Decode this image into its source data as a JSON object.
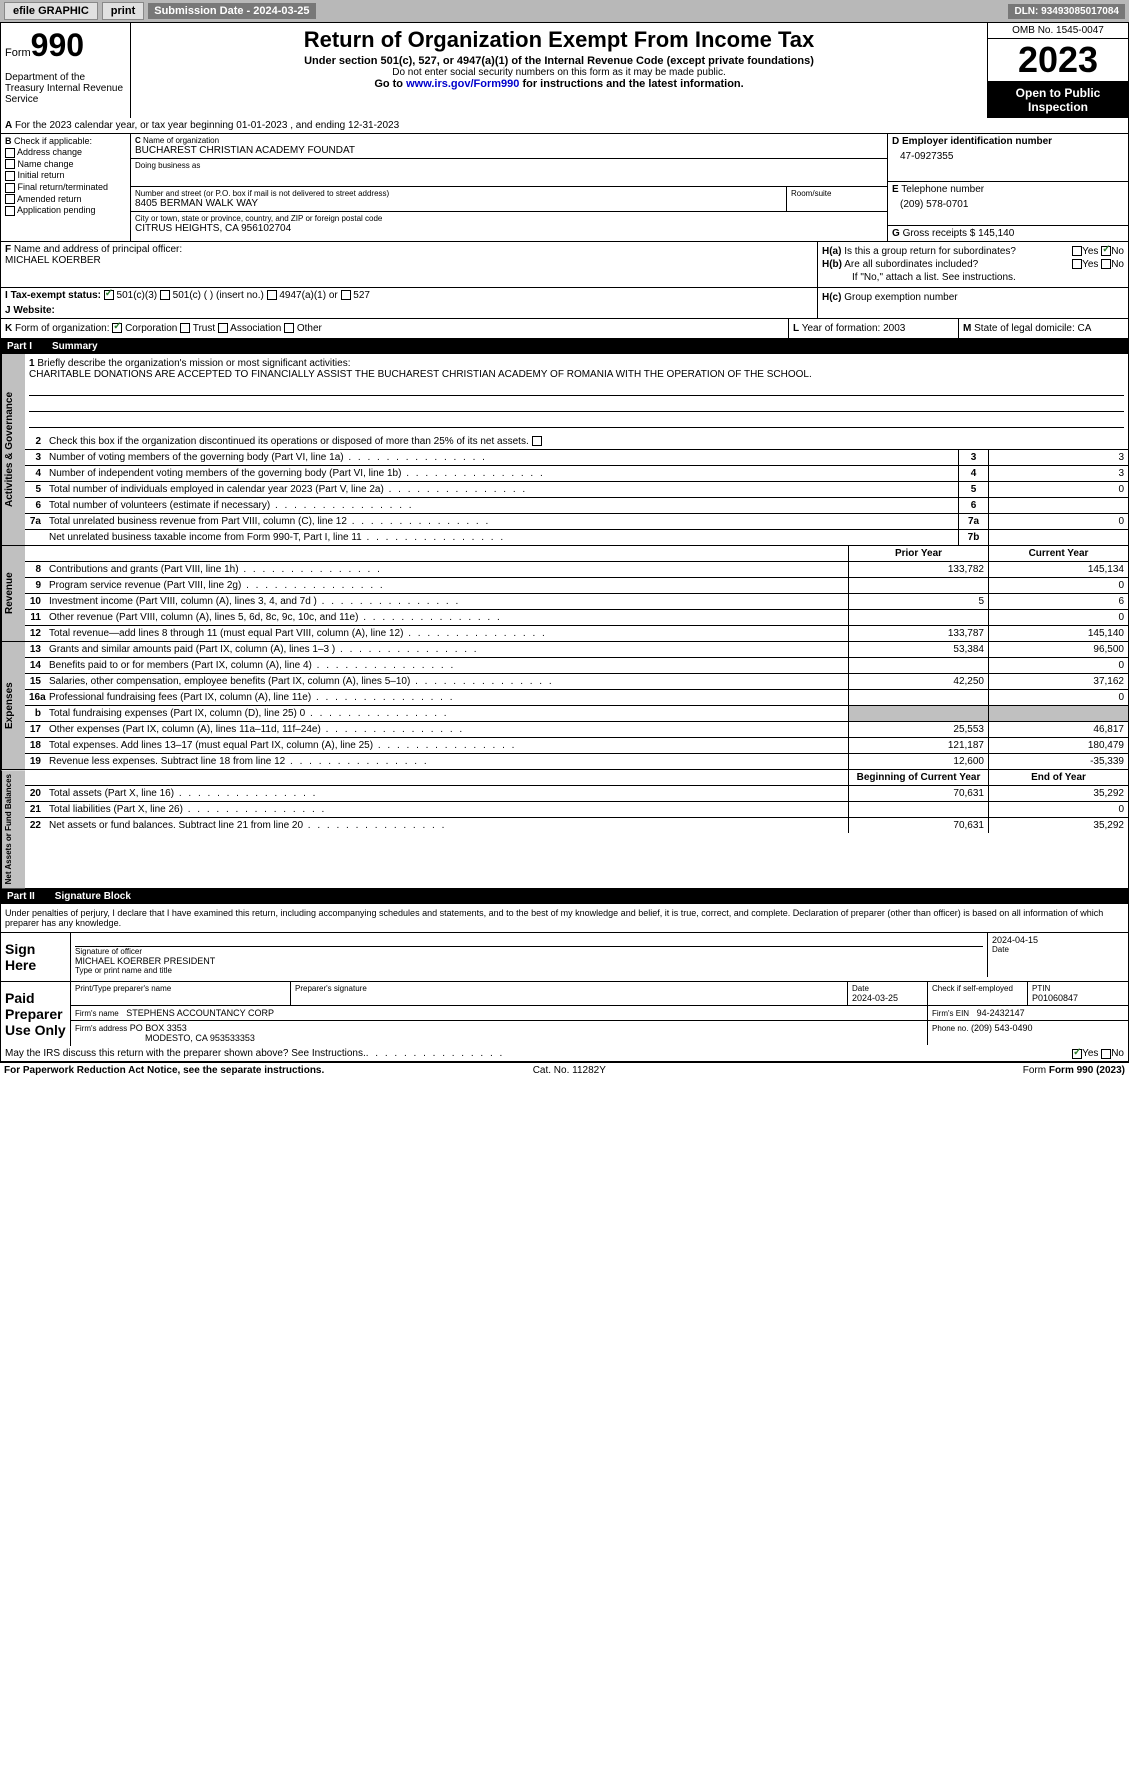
{
  "topbar": {
    "efile": "efile GRAPHIC",
    "print": "print",
    "sub_date_label": "Submission Date - 2024-03-25",
    "dln": "DLN: 93493085017084"
  },
  "header": {
    "form_word": "Form",
    "form_num": "990",
    "dept": "Department of the Treasury Internal Revenue Service",
    "title": "Return of Organization Exempt From Income Tax",
    "sub1": "Under section 501(c), 527, or 4947(a)(1) of the Internal Revenue Code (except private foundations)",
    "sub2": "Do not enter social security numbers on this form as it may be made public.",
    "sub3": "Go to ",
    "link": "www.irs.gov/Form990",
    "sub3b": " for instructions and the latest information.",
    "omb": "OMB No. 1545-0047",
    "year": "2023",
    "inspect": "Open to Public Inspection"
  },
  "line_a": "For the 2023 calendar year, or tax year beginning 01-01-2023   , and ending 12-31-2023",
  "sec_b": {
    "label": "Check if applicable:",
    "opts": [
      "Address change",
      "Name change",
      "Initial return",
      "Final return/terminated",
      "Amended return",
      "Application pending"
    ],
    "b": "B"
  },
  "sec_c": {
    "c": "C",
    "name_lbl": "Name of organization",
    "name": "BUCHAREST CHRISTIAN ACADEMY FOUNDAT",
    "dba_lbl": "Doing business as",
    "dba": "",
    "street_lbl": "Number and street (or P.O. box if mail is not delivered to street address)",
    "street": "8405 BERMAN WALK WAY",
    "room_lbl": "Room/suite",
    "room": "",
    "city_lbl": "City or town, state or province, country, and ZIP or foreign postal code",
    "city": "CITRUS HEIGHTS, CA  956102704"
  },
  "sec_d": {
    "d": "D",
    "ein_lbl": "Employer identification number",
    "ein": "47-0927355",
    "e": "E",
    "tel_lbl": "Telephone number",
    "tel": "(209) 578-0701",
    "g": "G",
    "gross_lbl": "Gross receipts $",
    "gross": "145,140"
  },
  "sec_f": {
    "f": "F",
    "lbl": "Name and address of principal officer:",
    "name": "MICHAEL KOERBER"
  },
  "sec_h": {
    "ha": "H(a)",
    "ha_txt": "Is this a group return for subordinates?",
    "hb": "H(b)",
    "hb_txt": "Are all subordinates included?",
    "hb_note": "If \"No,\" attach a list. See instructions.",
    "hc": "H(c)",
    "hc_txt": "Group exemption number",
    "yes": "Yes",
    "no": "No"
  },
  "sec_i": {
    "i": "I",
    "lbl": "Tax-exempt status:",
    "o1": "501(c)(3)",
    "o2": "501(c) (  ) (insert no.)",
    "o3": "4947(a)(1) or",
    "o4": "527"
  },
  "sec_j": {
    "j": "J",
    "lbl": "Website:",
    "val": ""
  },
  "sec_k": {
    "k": "K",
    "lbl": "Form of organization:",
    "o1": "Corporation",
    "o2": "Trust",
    "o3": "Association",
    "o4": "Other",
    "l": "L",
    "l_lbl": "Year of formation:",
    "l_val": "2003",
    "m": "M",
    "m_lbl": "State of legal domicile:",
    "m_val": "CA"
  },
  "part1": {
    "hdr": "Part I",
    "title": "Summary",
    "q1": "Briefly describe the organization's mission or most significant activities:",
    "mission": "CHARITABLE DONATIONS ARE ACCEPTED TO FINANCIALLY ASSIST THE BUCHAREST CHRISTIAN ACADEMY OF ROMANIA WITH THE OPERATION OF THE SCHOOL.",
    "q2": "Check this box   if the organization discontinued its operations or disposed of more than 25% of its net assets.",
    "rows_gov": [
      {
        "n": "3",
        "t": "Number of voting members of the governing body (Part VI, line 1a)",
        "c": "3",
        "v": "3"
      },
      {
        "n": "4",
        "t": "Number of independent voting members of the governing body (Part VI, line 1b)",
        "c": "4",
        "v": "3"
      },
      {
        "n": "5",
        "t": "Total number of individuals employed in calendar year 2023 (Part V, line 2a)",
        "c": "5",
        "v": "0"
      },
      {
        "n": "6",
        "t": "Total number of volunteers (estimate if necessary)",
        "c": "6",
        "v": ""
      },
      {
        "n": "7a",
        "t": "Total unrelated business revenue from Part VIII, column (C), line 12",
        "c": "7a",
        "v": "0"
      },
      {
        "n": "",
        "t": "Net unrelated business taxable income from Form 990-T, Part I, line 11",
        "c": "7b",
        "v": ""
      }
    ],
    "col_prior": "Prior Year",
    "col_curr": "Current Year",
    "rows_rev": [
      {
        "n": "8",
        "t": "Contributions and grants (Part VIII, line 1h)",
        "p": "133,782",
        "c": "145,134"
      },
      {
        "n": "9",
        "t": "Program service revenue (Part VIII, line 2g)",
        "p": "",
        "c": "0"
      },
      {
        "n": "10",
        "t": "Investment income (Part VIII, column (A), lines 3, 4, and 7d )",
        "p": "5",
        "c": "6"
      },
      {
        "n": "11",
        "t": "Other revenue (Part VIII, column (A), lines 5, 6d, 8c, 9c, 10c, and 11e)",
        "p": "",
        "c": "0"
      },
      {
        "n": "12",
        "t": "Total revenue—add lines 8 through 11 (must equal Part VIII, column (A), line 12)",
        "p": "133,787",
        "c": "145,140"
      }
    ],
    "rows_exp": [
      {
        "n": "13",
        "t": "Grants and similar amounts paid (Part IX, column (A), lines 1–3 )",
        "p": "53,384",
        "c": "96,500"
      },
      {
        "n": "14",
        "t": "Benefits paid to or for members (Part IX, column (A), line 4)",
        "p": "",
        "c": "0"
      },
      {
        "n": "15",
        "t": "Salaries, other compensation, employee benefits (Part IX, column (A), lines 5–10)",
        "p": "42,250",
        "c": "37,162"
      },
      {
        "n": "16a",
        "t": "Professional fundraising fees (Part IX, column (A), line 11e)",
        "p": "",
        "c": "0"
      },
      {
        "n": "b",
        "t": "Total fundraising expenses (Part IX, column (D), line 25) 0",
        "p": "",
        "c": "",
        "gray": true
      },
      {
        "n": "17",
        "t": "Other expenses (Part IX, column (A), lines 11a–11d, 11f–24e)",
        "p": "25,553",
        "c": "46,817"
      },
      {
        "n": "18",
        "t": "Total expenses. Add lines 13–17 (must equal Part IX, column (A), line 25)",
        "p": "121,187",
        "c": "180,479"
      },
      {
        "n": "19",
        "t": "Revenue less expenses. Subtract line 18 from line 12",
        "p": "12,600",
        "c": "-35,339"
      }
    ],
    "col_beg": "Beginning of Current Year",
    "col_end": "End of Year",
    "rows_net": [
      {
        "n": "20",
        "t": "Total assets (Part X, line 16)",
        "p": "70,631",
        "c": "35,292"
      },
      {
        "n": "21",
        "t": "Total liabilities (Part X, line 26)",
        "p": "",
        "c": "0"
      },
      {
        "n": "22",
        "t": "Net assets or fund balances. Subtract line 21 from line 20",
        "p": "70,631",
        "c": "35,292"
      }
    ],
    "side_gov": "Activities & Governance",
    "side_rev": "Revenue",
    "side_exp": "Expenses",
    "side_net": "Net Assets or Fund Balances"
  },
  "part2": {
    "hdr": "Part II",
    "title": "Signature Block",
    "decl": "Under penalties of perjury, I declare that I have examined this return, including accompanying schedules and statements, and to the best of my knowledge and belief, it is true, correct, and complete. Declaration of preparer (other than officer) is based on all information of which preparer has any knowledge.",
    "sign_here": "Sign Here",
    "sig_lbl": "Signature of officer",
    "sig_name": "MICHAEL KOERBER  PRESIDENT",
    "sig_type": "Type or print name and title",
    "date": "2024-04-15",
    "date_lbl": "Date",
    "paid": "Paid Preparer Use Only",
    "prep_name_lbl": "Print/Type preparer's name",
    "prep_sig_lbl": "Preparer's signature",
    "prep_date_lbl": "Date",
    "prep_date": "2024-03-25",
    "check_lbl": "Check    if self-employed",
    "ptin_lbl": "PTIN",
    "ptin": "P01060847",
    "firm_name_lbl": "Firm's name",
    "firm_name": "STEPHENS ACCOUNTANCY CORP",
    "firm_ein_lbl": "Firm's EIN",
    "firm_ein": "94-2432147",
    "firm_addr_lbl": "Firm's address",
    "firm_addr1": "PO BOX 3353",
    "firm_addr2": "MODESTO, CA  953533353",
    "phone_lbl": "Phone no.",
    "phone": "(209) 543-0490",
    "discuss": "May the IRS discuss this return with the preparer shown above? See Instructions.",
    "yes": "Yes",
    "no": "No"
  },
  "footer": {
    "pra": "For Paperwork Reduction Act Notice, see the separate instructions.",
    "cat": "Cat. No. 11282Y",
    "form": "Form 990 (2023)"
  }
}
